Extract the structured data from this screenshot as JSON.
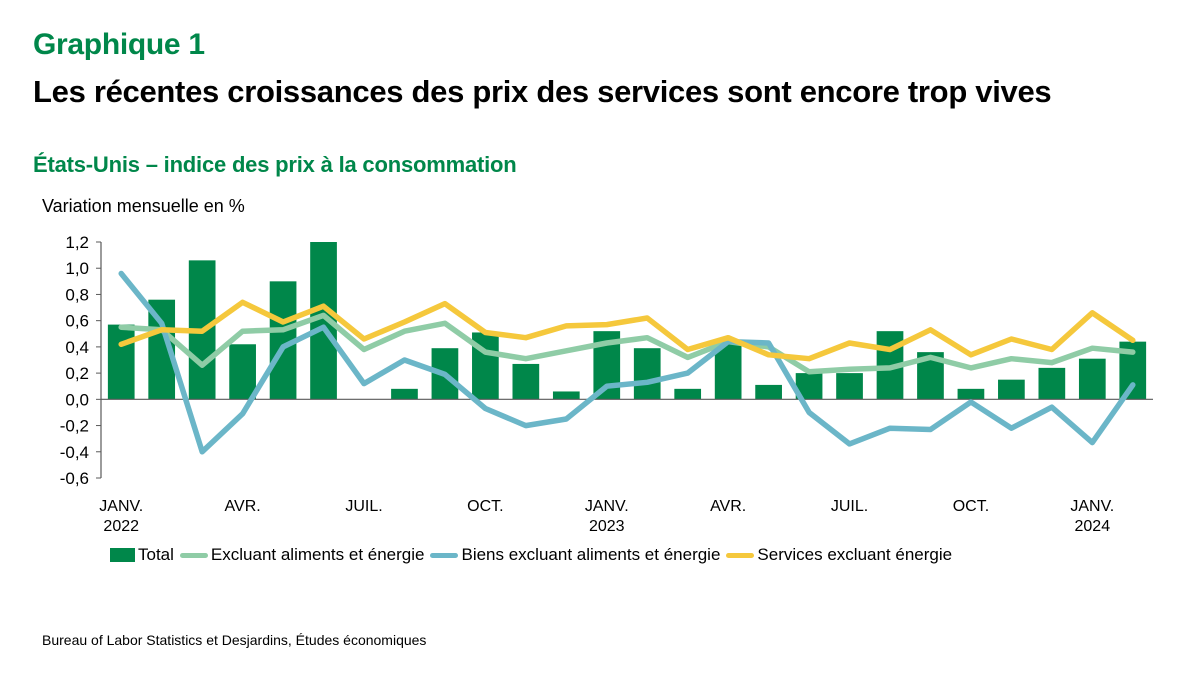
{
  "header": {
    "kicker": "Graphique 1",
    "title": "Les récentes croissances des prix des services sont encore trop vives",
    "subtitle": "États-Unis – indice des prix à la consommation",
    "unit_label": "Variation mensuelle en %"
  },
  "source": "Bureau of Labor Statistics et Desjardins, Études économiques",
  "chart_data": {
    "type": "bar+line",
    "title": "Les récentes croissances des prix des services sont encore trop vives",
    "subtitle": "États-Unis – indice des prix à la consommation",
    "ylabel": "Variation mensuelle en %",
    "xlabel": "",
    "ylim": [
      -0.6,
      1.2
    ],
    "yticks": [
      -0.6,
      -0.4,
      -0.2,
      0.0,
      0.2,
      0.4,
      0.6,
      0.8,
      1.0,
      1.2
    ],
    "ytick_labels": [
      "-0,6",
      "-0,4",
      "-0,2",
      "0,0",
      "0,2",
      "0,4",
      "0,6",
      "0,8",
      "1,0",
      "1,2"
    ],
    "grid": false,
    "legend_position": "bottom",
    "categories": [
      "2022-01",
      "2022-02",
      "2022-03",
      "2022-04",
      "2022-05",
      "2022-06",
      "2022-07",
      "2022-08",
      "2022-09",
      "2022-10",
      "2022-11",
      "2022-12",
      "2023-01",
      "2023-02",
      "2023-03",
      "2023-04",
      "2023-05",
      "2023-06",
      "2023-07",
      "2023-08",
      "2023-09",
      "2023-10",
      "2023-11",
      "2023-12",
      "2024-01",
      "2024-02"
    ],
    "xtick_labels": [
      {
        "index": 0,
        "line1": "JANV.",
        "line2": "2022"
      },
      {
        "index": 3,
        "line1": "AVR.",
        "line2": ""
      },
      {
        "index": 6,
        "line1": "JUIL.",
        "line2": ""
      },
      {
        "index": 9,
        "line1": "OCT.",
        "line2": ""
      },
      {
        "index": 12,
        "line1": "JANV.",
        "line2": "2023"
      },
      {
        "index": 15,
        "line1": "AVR.",
        "line2": ""
      },
      {
        "index": 18,
        "line1": "JUIL.",
        "line2": ""
      },
      {
        "index": 21,
        "line1": "OCT.",
        "line2": ""
      },
      {
        "index": 24,
        "line1": "JANV.",
        "line2": "2024"
      }
    ],
    "series": [
      {
        "name": "Total",
        "kind": "bar",
        "color": "#00874a",
        "values": [
          0.57,
          0.76,
          1.06,
          0.42,
          0.9,
          1.2,
          0.0,
          0.08,
          0.39,
          0.51,
          0.27,
          0.06,
          0.52,
          0.39,
          0.08,
          0.44,
          0.11,
          0.2,
          0.2,
          0.52,
          0.36,
          0.08,
          0.15,
          0.24,
          0.31,
          0.44
        ]
      },
      {
        "name": "Excluant aliments et énergie",
        "kind": "line",
        "color": "#8fcca6",
        "values": [
          0.55,
          0.53,
          0.26,
          0.52,
          0.53,
          0.64,
          0.38,
          0.52,
          0.58,
          0.36,
          0.31,
          0.37,
          0.43,
          0.47,
          0.32,
          0.44,
          0.4,
          0.21,
          0.23,
          0.24,
          0.32,
          0.24,
          0.31,
          0.28,
          0.39,
          0.36
        ]
      },
      {
        "name": "Biens excluant aliments et énergie",
        "kind": "line",
        "color": "#6bb6c8",
        "values": [
          0.96,
          0.58,
          -0.4,
          -0.11,
          0.4,
          0.55,
          0.12,
          0.3,
          0.19,
          -0.07,
          -0.2,
          -0.15,
          0.1,
          0.13,
          0.2,
          0.44,
          0.43,
          -0.1,
          -0.34,
          -0.22,
          -0.23,
          -0.02,
          -0.22,
          -0.06,
          -0.33,
          0.11
        ]
      },
      {
        "name": "Services excluant énergie",
        "kind": "line",
        "color": "#f5c83c",
        "values": [
          0.42,
          0.53,
          0.52,
          0.74,
          0.59,
          0.71,
          0.46,
          0.59,
          0.73,
          0.51,
          0.47,
          0.56,
          0.57,
          0.62,
          0.38,
          0.47,
          0.34,
          0.31,
          0.43,
          0.38,
          0.53,
          0.34,
          0.46,
          0.38,
          0.66,
          0.45
        ]
      }
    ]
  }
}
